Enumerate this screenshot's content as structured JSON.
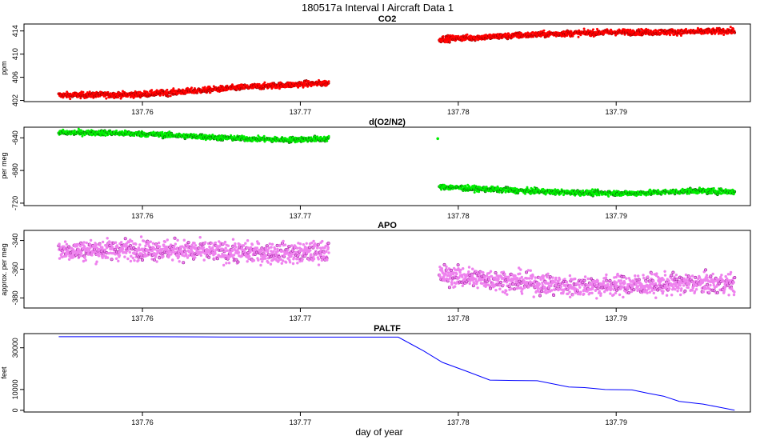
{
  "figure": {
    "title": "180517a   Interval I Aircraft Data 1",
    "xlabel": "day of year"
  },
  "colors": {
    "co2": "#ff0000",
    "o2n2": "#00ee00",
    "apo": "#ee82ee",
    "paltf": "#0000ff"
  },
  "chart_data": [
    {
      "id": "co2",
      "type": "scatter",
      "title": "CO2",
      "xlabel": "",
      "ylabel": "ppm",
      "xlim": [
        137.7525,
        137.7985
      ],
      "ylim": [
        401.8,
        415.2
      ],
      "xticks": [
        137.76,
        137.77,
        137.78,
        137.79
      ],
      "xtick_labels": [
        "137.76",
        "137.77",
        "137.78",
        "137.79"
      ],
      "yticks": [
        402,
        406,
        410,
        414
      ],
      "ytick_labels": [
        "402",
        "406",
        "410",
        "414"
      ],
      "grid": false,
      "segments": [
        {
          "x": [
            137.7547,
            137.7595,
            137.763,
            137.7665,
            137.77,
            137.7718
          ],
          "y": [
            402.9,
            403.0,
            403.6,
            404.3,
            404.8,
            405.0
          ]
        },
        {
          "x": [
            137.7788,
            137.782,
            137.786,
            137.79,
            137.794,
            137.7975
          ],
          "y": [
            412.6,
            413.0,
            413.5,
            413.8,
            413.8,
            414.0
          ]
        }
      ]
    },
    {
      "id": "o2n2",
      "type": "scatter",
      "title": "d(O2/N2)",
      "xlabel": "",
      "ylabel": "per meg",
      "xlim": [
        137.7525,
        137.7985
      ],
      "ylim": [
        -723,
        -627
      ],
      "xticks": [
        137.76,
        137.77,
        137.78,
        137.79
      ],
      "xtick_labels": [
        "137.76",
        "137.77",
        "137.78",
        "137.79"
      ],
      "yticks": [
        -640,
        -680,
        -720
      ],
      "ytick_labels": [
        "-640",
        "-680",
        "-720"
      ],
      "grid": false,
      "segments": [
        {
          "x": [
            137.7547,
            137.758,
            137.761,
            137.765,
            137.769,
            137.7718
          ],
          "y": [
            -633.5,
            -634.0,
            -636.0,
            -640.0,
            -642.5,
            -641.0
          ]
        },
        {
          "x": [
            137.7788,
            137.783,
            137.787,
            137.791,
            137.795,
            137.7975
          ],
          "y": [
            -700.0,
            -704.0,
            -707.0,
            -708.0,
            -705.0,
            -706.0
          ]
        }
      ],
      "outliers": [
        {
          "x": 137.7787,
          "y": -641.0
        }
      ]
    },
    {
      "id": "apo",
      "type": "scatter",
      "title": "APO",
      "xlabel": "",
      "ylabel": "approx. per meg",
      "xlim": [
        137.7525,
        137.7985
      ],
      "ylim": [
        -387,
        -333
      ],
      "xticks": [
        137.76,
        137.77,
        137.78,
        137.79
      ],
      "xtick_labels": [
        "137.76",
        "137.77",
        "137.78",
        "137.79"
      ],
      "yticks": [
        -340,
        -360,
        -380
      ],
      "ytick_labels": [
        "-340",
        "-360",
        "-380"
      ],
      "grid": false,
      "segments": [
        {
          "x": [
            137.7547,
            137.76,
            137.765,
            137.77,
            137.7718
          ],
          "y": [
            -347.0,
            -346.0,
            -348.0,
            -349.0,
            -347.0
          ]
        },
        {
          "x": [
            137.7788,
            137.783,
            137.787,
            137.791,
            137.795,
            137.7975
          ],
          "y": [
            -364.0,
            -368.0,
            -372.0,
            -371.0,
            -370.0,
            -370.0
          ]
        }
      ]
    },
    {
      "id": "paltf",
      "type": "line",
      "title": "PALTF",
      "xlabel": "day of year",
      "ylabel": "feet",
      "xlim": [
        137.7525,
        137.7985
      ],
      "ylim": [
        -800,
        36800
      ],
      "xticks": [
        137.76,
        137.77,
        137.78,
        137.79
      ],
      "xtick_labels": [
        "137.76",
        "137.77",
        "137.78",
        "137.79"
      ],
      "yticks": [
        0,
        10000,
        30000
      ],
      "ytick_labels": [
        "0",
        "10000",
        "30000"
      ],
      "grid": false,
      "series": [
        {
          "x": [
            137.7547,
            137.76,
            137.765,
            137.77,
            137.772,
            137.7762,
            137.777,
            137.7778,
            137.779,
            137.7805,
            137.782,
            137.7835,
            137.785,
            137.787,
            137.788,
            137.7893,
            137.7903,
            137.791,
            137.792,
            137.793,
            137.794,
            137.7955,
            137.7975
          ],
          "y": [
            35300,
            35300,
            35200,
            35100,
            35100,
            35100,
            31800,
            28500,
            23000,
            18800,
            14500,
            14300,
            14200,
            11200,
            10900,
            10000,
            9900,
            9800,
            8200,
            6800,
            4300,
            3000,
            100
          ]
        }
      ]
    }
  ]
}
